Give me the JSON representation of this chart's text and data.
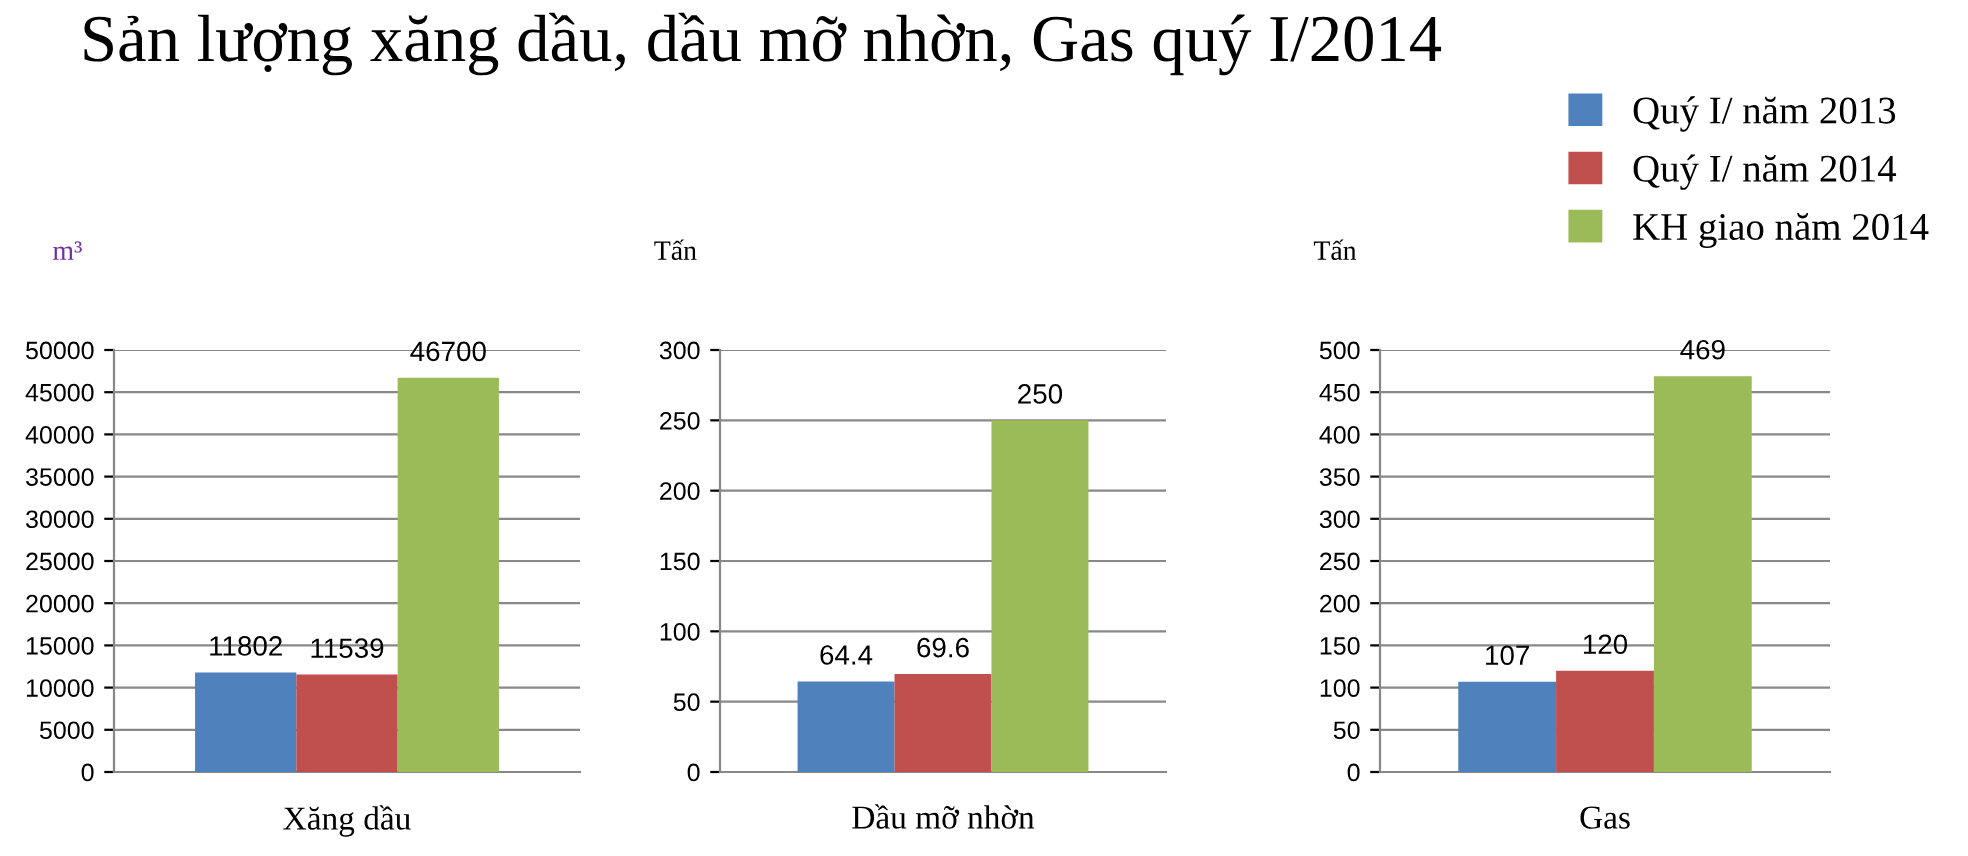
{
  "chart_data": [
    {
      "type": "bar",
      "title": "Sản lượng xăng dầu, dầu mỡ nhờn, Gas quý I/2014",
      "ylabel": "m³",
      "categories": [
        "Xăng dầu"
      ],
      "ylim": [
        0,
        50000
      ],
      "yticks": [
        0,
        5000,
        10000,
        15000,
        20000,
        25000,
        30000,
        35000,
        40000,
        45000,
        50000
      ],
      "grid": "y",
      "legend": "top right",
      "data_labels": true,
      "series": [
        {
          "name": "Quý I/ năm 2013",
          "color": "#4f81bd",
          "values": [
            11802
          ]
        },
        {
          "name": "Quý I/ năm 2014",
          "color": "#c0504d",
          "values": [
            11539
          ]
        },
        {
          "name": "KH giao năm 2014",
          "color": "#9bbb59",
          "values": [
            46700
          ]
        }
      ]
    },
    {
      "type": "bar",
      "ylabel": "Tấn",
      "categories": [
        "Dầu mỡ nhờn"
      ],
      "ylim": [
        0,
        300
      ],
      "yticks": [
        0,
        50,
        100,
        150,
        200,
        250,
        300
      ],
      "grid": "y",
      "data_labels": true,
      "series": [
        {
          "color": "#4f81bd",
          "values": [
            64.4
          ]
        },
        {
          "color": "#c0504d",
          "values": [
            69.6
          ]
        },
        {
          "color": "#9bbb59",
          "values": [
            250
          ]
        }
      ]
    },
    {
      "type": "bar",
      "ylabel": "Tấn",
      "categories": [
        "Gas"
      ],
      "ylim": [
        0,
        500
      ],
      "yticks": [
        0,
        50,
        100,
        150,
        200,
        250,
        300,
        350,
        400,
        450,
        500
      ],
      "grid": "y",
      "data_labels": true,
      "series": [
        {
          "color": "#4f81bd",
          "values": [
            107
          ]
        },
        {
          "color": "#c0504d",
          "values": [
            120
          ]
        },
        {
          "color": "#9bbb59",
          "values": [
            469
          ]
        }
      ]
    }
  ]
}
